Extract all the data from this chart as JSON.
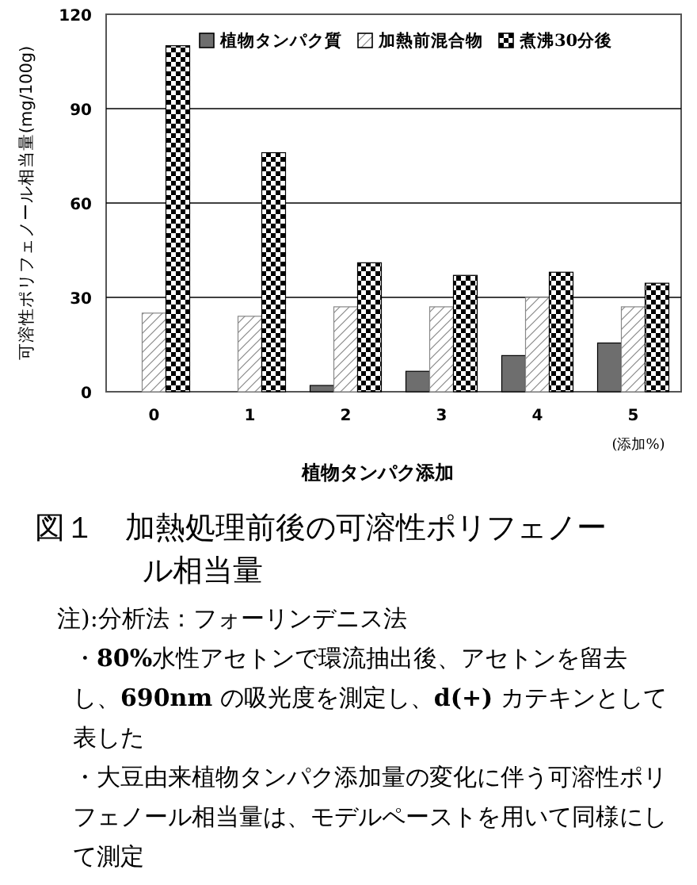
{
  "chart_data": {
    "type": "bar",
    "title": "図１　加熱処理前後の可溶性ポリフェノール相当量",
    "xlabel": "植物タンパク添加",
    "ylabel": "可溶性ポリフェノール相当量(mg/100g)",
    "categories": [
      "0",
      "1",
      "2",
      "3",
      "4",
      "5"
    ],
    "series": [
      {
        "name": "植物タンパク質",
        "color": "#6e6e6e",
        "values": [
          0,
          0,
          2,
          6.5,
          11.5,
          15.5
        ]
      },
      {
        "name": "加熱前混合物",
        "color": "#888888",
        "values": [
          25,
          24,
          27,
          27,
          30,
          27
        ]
      },
      {
        "name": "煮沸30分後",
        "color": "#000000",
        "values": [
          110,
          76,
          41,
          37,
          38,
          34.5
        ]
      }
    ],
    "ylim": [
      0,
      120
    ],
    "yticks": [
      0,
      30,
      60,
      90,
      120
    ],
    "grid": "y",
    "legend": "top right",
    "annotations": [
      "(添加%)",
      "注):分析法：フォーリンデニス法",
      "・**80%**水性アセトンで環流抽出後、アセトンを留去し、**690nm** の吸光度を測定し、**d(+)** カテキンとして表した",
      "・大豆由来植物タンパク添加量の変化に伴う可溶性ポリフェノール相当量は、モデルペーストを用いて同様にして測定"
    ]
  }
}
